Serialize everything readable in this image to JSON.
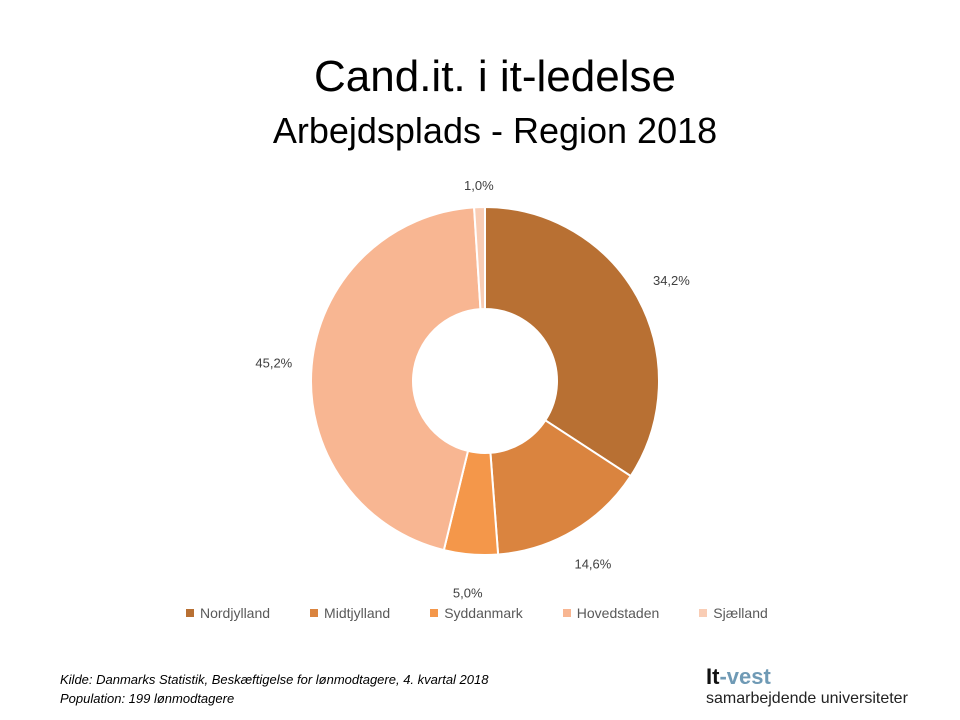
{
  "chart_data": {
    "type": "pie",
    "donut": true,
    "title": "Cand.it. i it-ledelse",
    "subtitle": "Arbejdsplads - Region 2018",
    "categories": [
      "Nordjylland",
      "Midtjylland",
      "Syddanmark",
      "Hovedstaden",
      "Sjælland"
    ],
    "values": [
      34.2,
      14.6,
      5.0,
      45.2,
      1.0
    ],
    "data_labels": [
      "34,2%",
      "14,6%",
      "5,0%",
      "45,2%",
      "1,0%"
    ],
    "colors": [
      "#B87033",
      "#DA843F",
      "#F4974A",
      "#F8B692",
      "#F9CDB5"
    ],
    "legend_position": "bottom"
  },
  "footer": {
    "source": "Kilde: Danmarks Statistik, Beskæftigelse for lønmodtagere, 4. kvartal 2018",
    "population": "Population: 199 lønmodtagere"
  },
  "logo": {
    "part1": "It",
    "part2": "-vest",
    "tagline": "samarbejdende universiteter"
  }
}
